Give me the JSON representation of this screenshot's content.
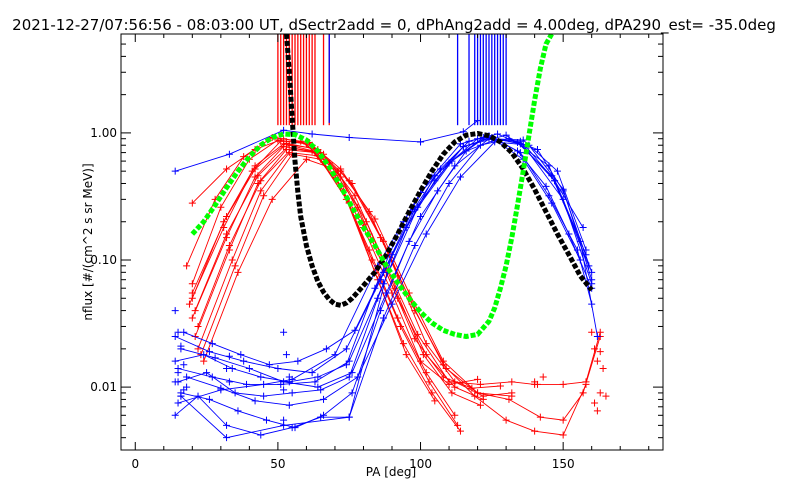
{
  "chart_data": {
    "type": "line",
    "title": "2021-12-27/07:56:56 - 08:03:00 UT, dSectr2add = 0, dPhAng2add = 4.00deg, dPA290_est= -35.0deg",
    "xlabel": "PA [deg]",
    "ylabel": "nflux [#/(cm^2 s sr MeV)]",
    "xlim": [
      -5,
      185
    ],
    "ylim": [
      0.0032,
      6.0
    ],
    "yscale": "log",
    "grid": false,
    "x_ticks": [
      0,
      50,
      100,
      150
    ],
    "x_tick_labels": [
      "0",
      "50",
      "100",
      "150"
    ],
    "y_ticks": [
      0.01,
      0.1,
      1.0
    ],
    "y_tick_labels": [
      "0.01",
      "0.10",
      "1.00"
    ],
    "colors": {
      "red_group": "#ff0000",
      "blue_group": "#0000ff",
      "black_fit": "#000000",
      "green_fit": "#00ff00"
    },
    "series": [
      {
        "color": "red_group",
        "style": "lines-plus",
        "lines": [
          {
            "x": [
              20,
              32,
              42,
              52,
              62,
              72,
              82,
              92,
              102,
              112,
              122,
              132
            ],
            "y": [
              0.28,
              0.52,
              0.74,
              0.9,
              0.8,
              0.52,
              0.24,
              0.075,
              0.022,
              0.011,
              0.0085,
              0.009
            ]
          },
          {
            "x": [
              20,
              32,
              42,
              52,
              62,
              72,
              82,
              92,
              102,
              112,
              122
            ],
            "y": [
              0.055,
              0.22,
              0.55,
              0.82,
              0.76,
              0.45,
              0.16,
              0.05,
              0.018,
              0.01,
              0.008
            ]
          },
          {
            "x": [
              20,
              32,
              42,
              52,
              62,
              72,
              82,
              92,
              102,
              112
            ],
            "y": [
              0.035,
              0.15,
              0.45,
              0.78,
              0.72,
              0.38,
              0.12,
              0.035,
              0.013,
              0.006
            ]
          },
          {
            "x": [
              21,
              33,
              43,
              53,
              63,
              73,
              83,
              93,
              103,
              113
            ],
            "y": [
              0.025,
              0.12,
              0.4,
              0.74,
              0.7,
              0.35,
              0.1,
              0.03,
              0.011,
              0.005
            ]
          },
          {
            "x": [
              22,
              34,
              44,
              54,
              64,
              74,
              84,
              94,
              104,
              114
            ],
            "y": [
              0.02,
              0.1,
              0.35,
              0.7,
              0.66,
              0.3,
              0.08,
              0.022,
              0.009,
              0.0045
            ]
          },
          {
            "x": [
              19,
              31,
              41,
              51,
              61,
              71,
              81,
              91,
              101,
              111,
              121
            ],
            "y": [
              0.045,
              0.18,
              0.5,
              0.86,
              0.84,
              0.5,
              0.2,
              0.06,
              0.018,
              0.009,
              0.0072
            ]
          },
          {
            "x": [
              23,
              35,
              45,
              55,
              65,
              75,
              85,
              95,
              105
            ],
            "y": [
              0.018,
              0.09,
              0.32,
              0.68,
              0.62,
              0.28,
              0.07,
              0.018,
              0.0078
            ]
          },
          {
            "x": [
              20,
              30,
              40,
              50,
              60,
              70,
              80,
              90,
              100,
              110,
              120
            ],
            "y": [
              0.065,
              0.26,
              0.62,
              0.88,
              0.82,
              0.46,
              0.18,
              0.055,
              0.016,
              0.0105,
              0.0115
            ]
          },
          {
            "x": [
              22,
              33,
              44,
              55,
              66,
              77,
              88,
              99,
              110,
              121,
              132,
              140,
              150,
              158,
              163
            ],
            "y": [
              0.03,
              0.13,
              0.42,
              0.76,
              0.68,
              0.32,
              0.09,
              0.026,
              0.011,
              0.0105,
              0.011,
              0.0105,
              0.0105,
              0.011,
              0.027
            ]
          },
          {
            "x": [
              21,
              32,
              43,
              54,
              65,
              76,
              87,
              98,
              109,
              120,
              131,
              142,
              150,
              157,
              163
            ],
            "y": [
              0.04,
              0.16,
              0.46,
              0.8,
              0.7,
              0.4,
              0.14,
              0.04,
              0.014,
              0.009,
              0.008,
              0.0058,
              0.0055,
              0.009,
              0.025
            ]
          },
          {
            "x": [
              20,
              31,
              42,
              53,
              64,
              75,
              86,
              97,
              108,
              119,
              130,
              140,
              150,
              158
            ],
            "y": [
              0.05,
              0.2,
              0.52,
              0.83,
              0.74,
              0.42,
              0.15,
              0.045,
              0.015,
              0.0085,
              0.0055,
              0.0045,
              0.0042,
              0.0105
            ]
          },
          {
            "x": [
              24,
              36,
              48,
              60,
              72,
              84,
              96,
              108,
              120,
              132
            ],
            "y": [
              0.016,
              0.08,
              0.3,
              0.62,
              0.5,
              0.21,
              0.055,
              0.016,
              0.009,
              0.0085
            ]
          },
          {
            "x": [
              18,
              28,
              38,
              48,
              58,
              68,
              78,
              88,
              98,
              108,
              118,
              128
            ],
            "y": [
              0.09,
              0.3,
              0.65,
              0.92,
              0.86,
              0.58,
              0.26,
              0.08,
              0.024,
              0.012,
              0.0098,
              0.0102
            ]
          }
        ]
      },
      {
        "color": "blue_group",
        "style": "lines-plus",
        "lines": [
          {
            "x": [
              14,
              33,
              52,
              62,
              75,
              100
            ],
            "y": [
              0.5,
              0.68,
              1.05,
              0.98,
              0.92,
              0.85
            ]
          },
          {
            "x": [
              100,
              115,
              120
            ],
            "y": [
              0.85,
              1.02,
              1.25
            ]
          },
          {
            "x": [
              14,
              24,
              34,
              44,
              54,
              64,
              74,
              84,
              94,
              104,
              114,
              124,
              134,
              144,
              152,
              160
            ],
            "y": [
              0.016,
              0.018,
              0.014,
              0.012,
              0.011,
              0.012,
              0.015,
              0.06,
              0.2,
              0.45,
              0.82,
              0.95,
              0.72,
              0.38,
              0.16,
              0.06
            ]
          },
          {
            "x": [
              15,
              25,
              35,
              45,
              55,
              65,
              75,
              85,
              95,
              105,
              115,
              125,
              135,
              145,
              155,
              160
            ],
            "y": [
              0.011,
              0.013,
              0.009,
              0.0085,
              0.009,
              0.0095,
              0.012,
              0.05,
              0.18,
              0.42,
              0.78,
              0.92,
              0.7,
              0.32,
              0.12,
              0.045
            ]
          },
          {
            "x": [
              16,
              26,
              36,
              46,
              56,
              66,
              76,
              86,
              96,
              106,
              116,
              126,
              136,
              146,
              156
            ],
            "y": [
              0.009,
              0.008,
              0.0065,
              0.0055,
              0.0048,
              0.006,
              0.009,
              0.04,
              0.14,
              0.35,
              0.72,
              0.88,
              0.62,
              0.28,
              0.1
            ]
          },
          {
            "x": [
              17,
              27,
              37,
              47,
              57,
              67,
              77,
              87,
              97,
              107,
              117,
              127,
              137,
              147,
              157
            ],
            "y": [
              0.027,
              0.022,
              0.018,
              0.015,
              0.016,
              0.02,
              0.028,
              0.08,
              0.24,
              0.52,
              0.86,
              0.98,
              0.78,
              0.42,
              0.18
            ]
          },
          {
            "x": [
              14,
              22,
              32,
              44,
              55,
              65,
              75,
              87,
              98,
              110,
              121,
              131,
              141,
              150,
              160
            ],
            "y": [
              0.006,
              0.0085,
              0.005,
              0.0042,
              0.0048,
              0.0058,
              0.0058,
              0.035,
              0.13,
              0.4,
              0.8,
              0.9,
              0.74,
              0.35,
              0.08
            ]
          },
          {
            "x": [
              16,
              28,
              40,
              52,
              64,
              76,
              88,
              100,
              112,
              124,
              136,
              148,
              158
            ],
            "y": [
              0.02,
              0.017,
              0.014,
              0.011,
              0.01,
              0.013,
              0.055,
              0.22,
              0.55,
              0.9,
              0.88,
              0.5,
              0.12
            ]
          },
          {
            "x": [
              15,
              27,
              39,
              51,
              63,
              75,
              87,
              99,
              111,
              123,
              135,
              147,
              159
            ],
            "y": [
              0.014,
              0.012,
              0.0105,
              0.0105,
              0.011,
              0.016,
              0.065,
              0.26,
              0.6,
              0.93,
              0.82,
              0.42,
              0.09
            ]
          },
          {
            "x": [
              18,
              30,
              42,
              54,
              66,
              78,
              90,
              102,
              114,
              126,
              138,
              150,
              160
            ],
            "y": [
              0.012,
              0.0098,
              0.0078,
              0.0072,
              0.008,
              0.012,
              0.045,
              0.16,
              0.45,
              0.85,
              0.8,
              0.36,
              0.07
            ]
          },
          {
            "x": [
              15,
              30,
              45,
              55,
              70,
              85,
              100,
              115,
              130,
              145,
              158
            ],
            "y": [
              0.0075,
              0.0095,
              0.0105,
              0.0115,
              0.018,
              0.09,
              0.34,
              0.78,
              0.96,
              0.55,
              0.11
            ]
          },
          {
            "x": [
              16,
              32,
              52,
              75,
              90,
              105,
              120,
              135,
              150,
              160
            ],
            "y": [
              0.0085,
              0.004,
              0.005,
              0.0058,
              0.11,
              0.46,
              0.9,
              0.86,
              0.3,
              0.065
            ]
          },
          {
            "x": [
              14,
              26,
              38,
              50,
              62,
              74,
              86,
              98,
              110,
              122,
              134,
              146,
              156,
              162
            ],
            "y": [
              0.025,
              0.019,
              0.016,
              0.014,
              0.013,
              0.02,
              0.07,
              0.25,
              0.58,
              0.92,
              0.84,
              0.46,
              0.14,
              0.025
            ]
          }
        ]
      },
      {
        "color": "red_group",
        "style": "vertical-bars",
        "x": [
          50,
          51,
          52,
          53,
          54,
          55,
          56,
          57,
          58,
          59,
          60,
          61,
          62,
          63,
          66,
          68
        ],
        "y_bottom": 1.15,
        "y_top": 6.0
      },
      {
        "color": "blue_group",
        "style": "vertical-bars",
        "x": [
          119,
          120,
          121,
          122,
          123,
          124,
          125,
          126,
          127,
          128,
          129,
          130,
          117,
          113
        ],
        "y_bottom": 1.15,
        "y_top": 6.0
      },
      {
        "color": "blue_group",
        "style": "vertical-bars",
        "x": [
          68
        ],
        "y_bottom": 1.2,
        "y_top": 6.0
      },
      {
        "color": "black_fit",
        "style": "thick-dashed",
        "x": [
          53,
          54,
          55,
          56,
          57,
          58,
          60,
          62,
          64,
          66,
          68,
          70,
          72,
          74,
          76,
          78,
          80,
          84,
          88,
          92,
          96,
          100,
          104,
          108,
          112,
          116,
          120,
          124,
          128,
          132,
          136,
          140,
          144,
          148,
          152,
          156,
          160
        ],
        "y": [
          6.0,
          3.0,
          1.3,
          0.6,
          0.34,
          0.22,
          0.13,
          0.09,
          0.068,
          0.056,
          0.049,
          0.045,
          0.044,
          0.046,
          0.05,
          0.056,
          0.063,
          0.08,
          0.11,
          0.16,
          0.24,
          0.35,
          0.5,
          0.68,
          0.85,
          0.96,
          0.99,
          0.95,
          0.85,
          0.7,
          0.52,
          0.36,
          0.24,
          0.16,
          0.11,
          0.075,
          0.058
        ]
      },
      {
        "color": "green_fit",
        "style": "thick-dashed",
        "x": [
          20,
          24,
          28,
          32,
          36,
          40,
          44,
          48,
          52,
          56,
          60,
          64,
          68,
          72,
          76,
          80,
          84,
          88,
          92,
          96,
          100,
          104,
          108,
          112,
          116,
          120,
          124,
          126,
          128,
          130,
          132,
          134,
          136,
          138,
          140,
          142,
          144,
          146
        ],
        "y": [
          0.16,
          0.2,
          0.27,
          0.37,
          0.5,
          0.65,
          0.8,
          0.92,
          0.98,
          0.97,
          0.88,
          0.72,
          0.54,
          0.38,
          0.26,
          0.18,
          0.13,
          0.09,
          0.066,
          0.05,
          0.039,
          0.032,
          0.028,
          0.026,
          0.025,
          0.026,
          0.033,
          0.042,
          0.06,
          0.09,
          0.15,
          0.27,
          0.5,
          0.95,
          1.8,
          3.2,
          5.0,
          6.0
        ]
      }
    ],
    "scatter_extras": [
      {
        "color": "blue_group",
        "x": [
          14,
          15,
          16,
          17,
          15,
          16,
          14,
          17,
          18,
          33,
          32,
          33,
          52,
          52,
          53,
          54,
          52
        ],
        "y": [
          0.04,
          0.027,
          0.021,
          0.015,
          0.013,
          0.0085,
          0.011,
          0.0095,
          0.01,
          0.0175,
          0.014,
          0.011,
          0.027,
          0.0095,
          0.018,
          0.012,
          0.0055
        ]
      },
      {
        "color": "red_group",
        "x": [
          140,
          141,
          143,
          160,
          161,
          162,
          163,
          164,
          165,
          163,
          162,
          161
        ],
        "y": [
          0.011,
          0.0105,
          0.012,
          0.027,
          0.02,
          0.016,
          0.019,
          0.014,
          0.0085,
          0.009,
          0.0065,
          0.0075
        ]
      }
    ]
  }
}
